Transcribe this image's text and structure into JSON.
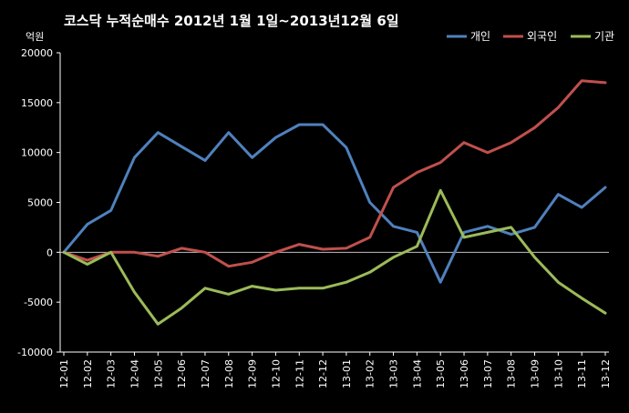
{
  "chart_data": {
    "type": "line",
    "title": "코스닥 누적순매수 2012년 1월 1일~2013년12월 6일",
    "ylabel": "억원",
    "xlabel": "",
    "ylim": [
      -10000,
      20000
    ],
    "yticks": [
      20000,
      15000,
      10000,
      5000,
      0,
      -5000,
      -10000
    ],
    "ytick_labels": [
      "20000",
      "15000",
      "10000",
      "5000",
      "0",
      "-5000",
      "-10000"
    ],
    "categories": [
      "12-01",
      "12-02",
      "12-03",
      "12-04",
      "12-05",
      "12-06",
      "12-07",
      "12-08",
      "12-09",
      "12-10",
      "12-11",
      "12-12",
      "13-01",
      "13-02",
      "13-03",
      "13-04",
      "13-05",
      "13-06",
      "13-07",
      "13-08",
      "13-09",
      "13-10",
      "13-11",
      "13-12"
    ],
    "legend_position": "top-right",
    "grid": false,
    "series": [
      {
        "name": "개인",
        "color": "#4f81bd",
        "values": [
          0,
          2800,
          4200,
          9500,
          12000,
          10600,
          9200,
          12000,
          9500,
          11500,
          12800,
          12800,
          10500,
          5000,
          2600,
          2000,
          -3000,
          2000,
          2600,
          1800,
          2500,
          5800,
          4500,
          6500
        ]
      },
      {
        "name": "외국인",
        "color": "#c0504d",
        "values": [
          0,
          -800,
          0,
          0,
          -400,
          400,
          0,
          -1400,
          -1000,
          0,
          800,
          300,
          400,
          1500,
          6500,
          8000,
          9000,
          11000,
          10000,
          11000,
          12500,
          14500,
          17200,
          17000
        ]
      },
      {
        "name": "기관",
        "color": "#9bbb59",
        "values": [
          0,
          -1200,
          0,
          -4000,
          -7200,
          -5600,
          -3600,
          -4200,
          -3400,
          -3800,
          -3600,
          -3600,
          -3000,
          -2000,
          -500,
          600,
          6200,
          1500,
          2000,
          2500,
          -500,
          -3000,
          -4600,
          -6100
        ]
      }
    ]
  }
}
